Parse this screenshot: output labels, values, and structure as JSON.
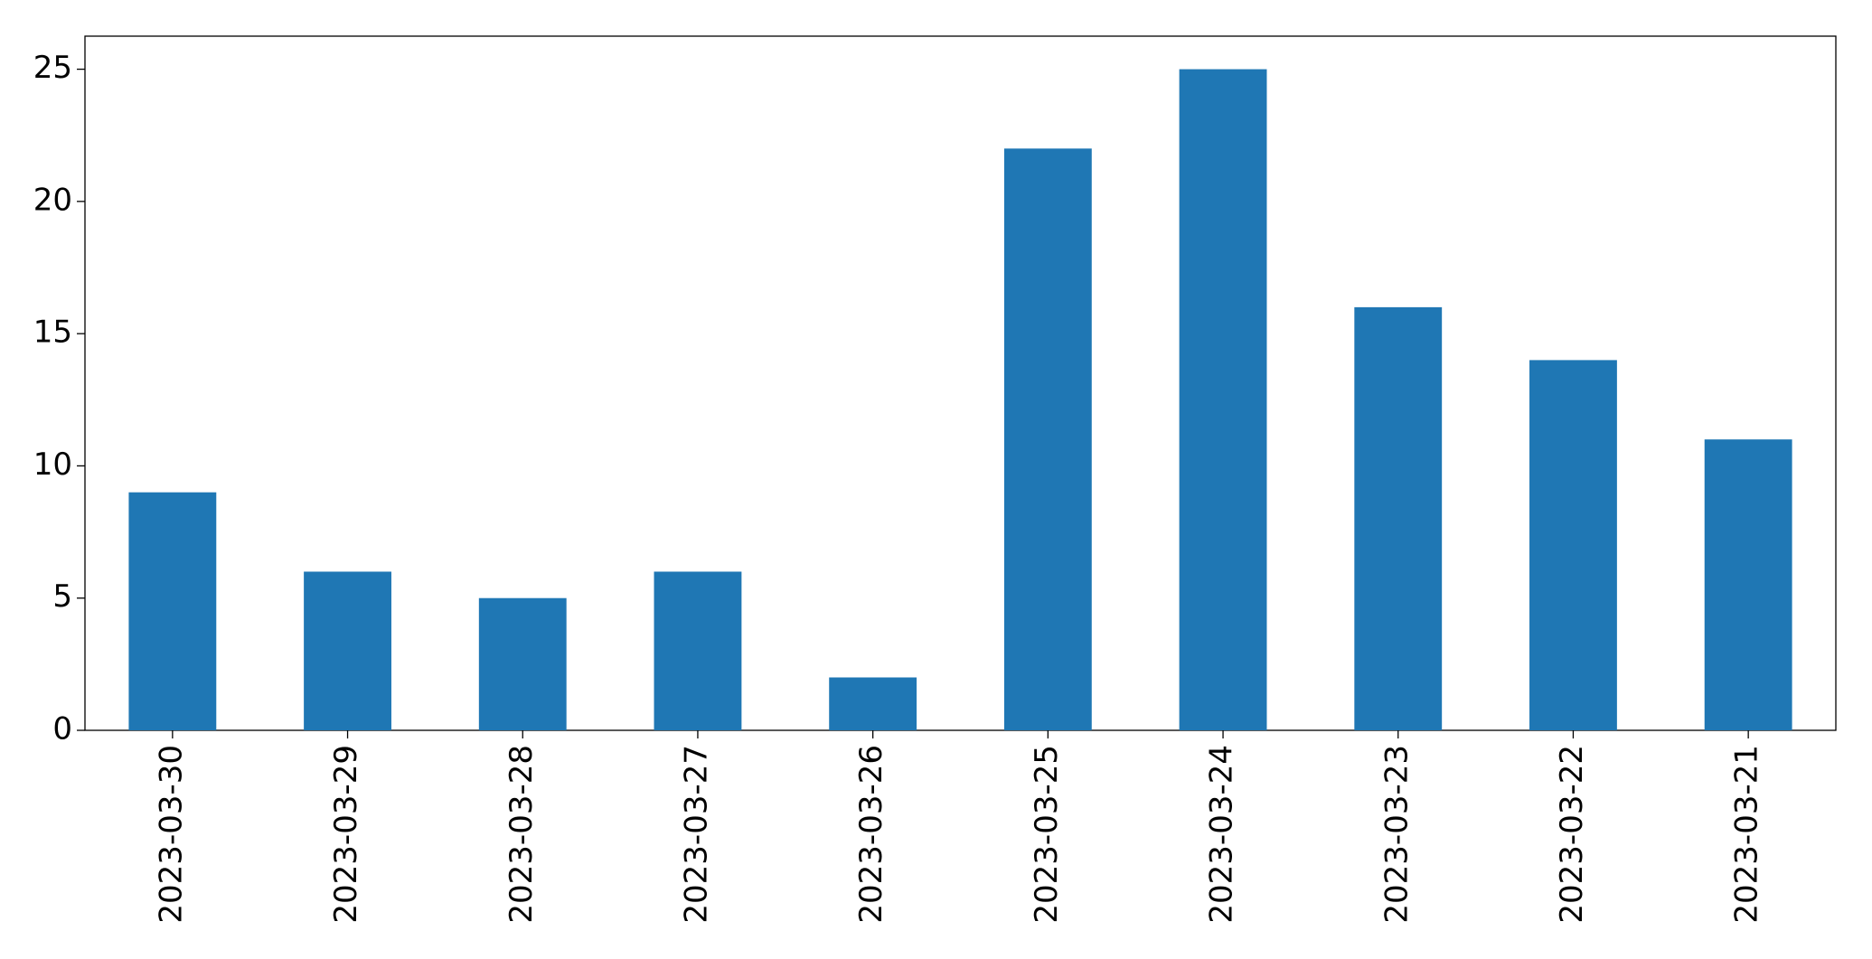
{
  "chart_data": {
    "type": "bar",
    "categories": [
      "2023-03-30",
      "2023-03-29",
      "2023-03-28",
      "2023-03-27",
      "2023-03-26",
      "2023-03-25",
      "2023-03-24",
      "2023-03-23",
      "2023-03-22",
      "2023-03-21"
    ],
    "values": [
      9,
      6,
      5,
      6,
      2,
      22,
      25,
      16,
      14,
      11
    ],
    "color": "#1f77b4",
    "ylim": [
      0,
      26.25
    ],
    "yticks": [
      0,
      5,
      10,
      15,
      20,
      25
    ],
    "grid": false
  }
}
